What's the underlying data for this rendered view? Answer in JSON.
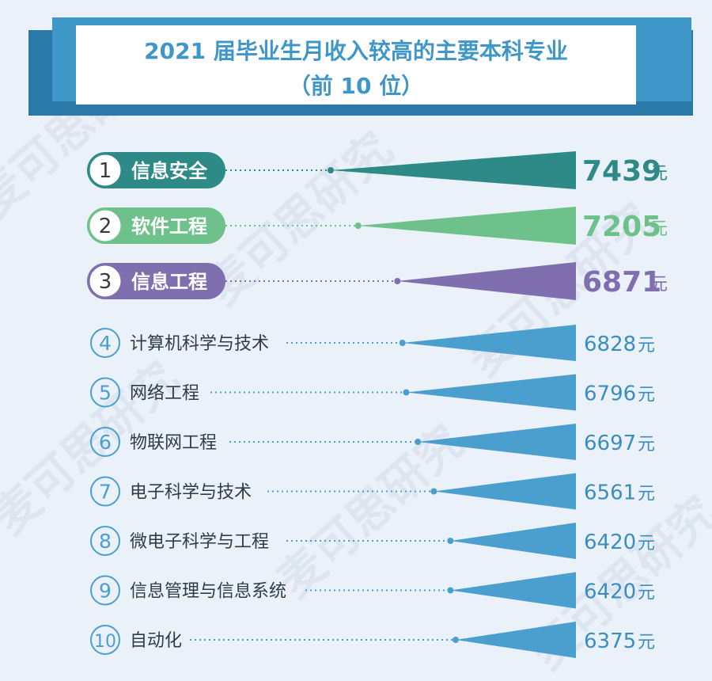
{
  "chart_data": {
    "type": "bar",
    "title": "2021 届毕业生月收入较高的主要本科专业",
    "subtitle": "（前 10 位）",
    "unit": "元",
    "categories": [
      "信息安全",
      "软件工程",
      "信息工程",
      "计算机科学与技术",
      "网络工程",
      "物联网工程",
      "电子科学与技术",
      "微电子科学与工程",
      "信息管理与信息系统",
      "自动化"
    ],
    "ranks": [
      "1",
      "2",
      "3",
      "4",
      "5",
      "6",
      "7",
      "8",
      "9",
      "10"
    ],
    "values": [
      7439,
      7205,
      6871,
      6828,
      6796,
      6697,
      6561,
      6420,
      6420,
      6375
    ],
    "value_labels": [
      "7439",
      "7205",
      "6871",
      "6828",
      "6796",
      "6697",
      "6561",
      "6420",
      "6420",
      "6375"
    ],
    "highlight_colors": [
      "#2d8a87",
      "#6ec18a",
      "#7f6fae"
    ],
    "default_color": "#4a9fcf"
  },
  "watermark": "麦可思研究",
  "colors": {
    "background": "#eaf1f8",
    "title_band": "#3f97c8",
    "title_band_shadow": "#2a79a8",
    "title_text": "#3f97c8",
    "label_text": "#2e3c4a",
    "value_text": "#3c8dbf"
  }
}
